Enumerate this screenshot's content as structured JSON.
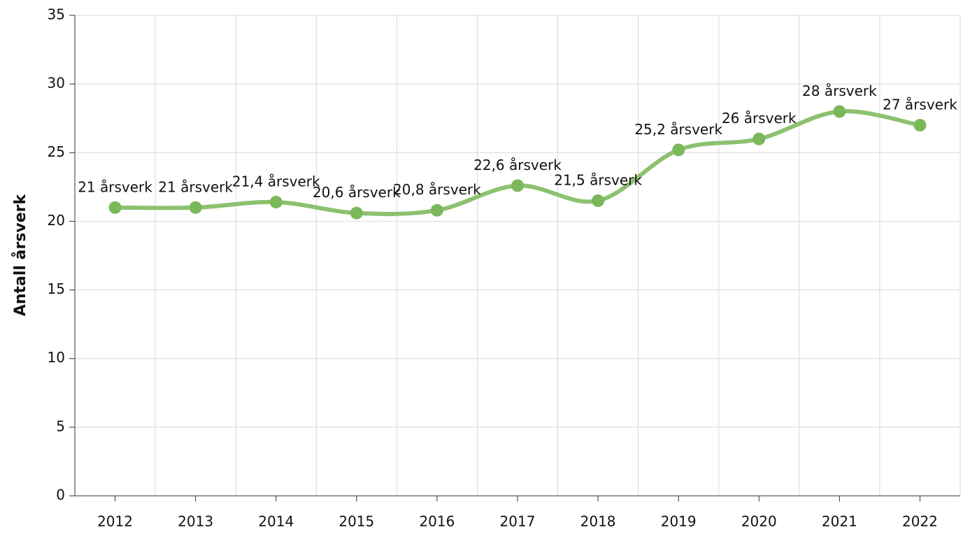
{
  "chart_data": {
    "type": "line",
    "y_label": "Antall årsverk",
    "categories": [
      "2012",
      "2013",
      "2014",
      "2015",
      "2016",
      "2017",
      "2018",
      "2019",
      "2020",
      "2021",
      "2022"
    ],
    "series": [
      {
        "name": "Antall årsverk",
        "color": "#8cc16f",
        "marker_color": "#7ab85a",
        "values": [
          21,
          21,
          21.4,
          20.6,
          20.8,
          22.6,
          21.5,
          25.2,
          26,
          28,
          27
        ],
        "value_labels": [
          "21 årsverk",
          "21 årsverk",
          "21,4 årsverk",
          "20,6 årsverk",
          "20,8 årsverk",
          "22,6 årsverk",
          "21,5 årsverk",
          "25,2 årsverk",
          "26 årsverk",
          "28 årsverk",
          "27 årsverk"
        ]
      }
    ],
    "ylim": [
      0,
      35
    ],
    "yticks": [
      0,
      5,
      10,
      15,
      20,
      25,
      30,
      35
    ],
    "grid": true
  }
}
